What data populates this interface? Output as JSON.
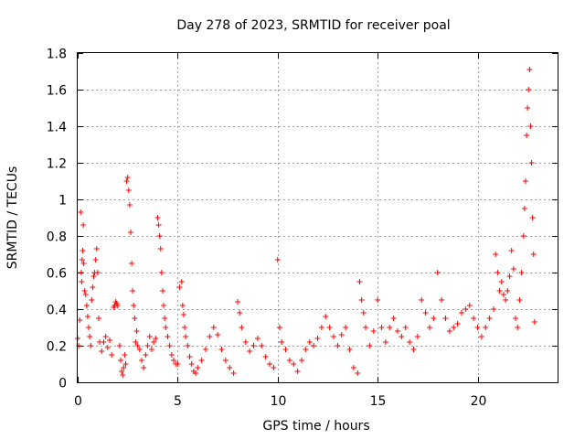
{
  "chart_data": {
    "type": "scatter",
    "title": "Day 278 of 2023, SRMTID for receiver poal",
    "xlabel": "GPS time / hours",
    "ylabel": "SRMTID / TECUs",
    "xlim": [
      0,
      24
    ],
    "ylim": [
      0,
      1.8
    ],
    "xticks": [
      0,
      5,
      10,
      15,
      20
    ],
    "yticks": [
      0,
      0.2,
      0.4,
      0.6,
      0.8,
      1,
      1.2,
      1.4,
      1.6,
      1.8
    ],
    "xtick_labels": [
      "0",
      "5",
      "10",
      "15",
      "20"
    ],
    "ytick_labels": [
      "0",
      "0.2",
      "0.4",
      "0.6",
      "0.8",
      "1",
      "1.2",
      "1.4",
      "1.6",
      "1.8"
    ],
    "grid": true,
    "marker": "+",
    "color": "#ff0000",
    "series": [
      {
        "name": "SRMTID",
        "points": [
          [
            0.0,
            0.24
          ],
          [
            0.05,
            0.2
          ],
          [
            0.1,
            0.34
          ],
          [
            0.15,
            0.93
          ],
          [
            0.18,
            0.6
          ],
          [
            0.2,
            0.55
          ],
          [
            0.22,
            0.67
          ],
          [
            0.25,
            0.72
          ],
          [
            0.28,
            0.86
          ],
          [
            0.3,
            0.65
          ],
          [
            0.35,
            0.5
          ],
          [
            0.4,
            0.48
          ],
          [
            0.45,
            0.42
          ],
          [
            0.5,
            0.36
          ],
          [
            0.55,
            0.3
          ],
          [
            0.6,
            0.25
          ],
          [
            0.65,
            0.2
          ],
          [
            0.7,
            0.45
          ],
          [
            0.75,
            0.52
          ],
          [
            0.8,
            0.58
          ],
          [
            0.85,
            0.6
          ],
          [
            0.9,
            0.67
          ],
          [
            0.95,
            0.73
          ],
          [
            1.0,
            0.6
          ],
          [
            1.05,
            0.35
          ],
          [
            1.1,
            0.22
          ],
          [
            1.2,
            0.17
          ],
          [
            1.3,
            0.22
          ],
          [
            1.4,
            0.25
          ],
          [
            1.5,
            0.19
          ],
          [
            1.6,
            0.23
          ],
          [
            1.7,
            0.15
          ],
          [
            1.8,
            0.41
          ],
          [
            1.85,
            0.42
          ],
          [
            1.9,
            0.44
          ],
          [
            1.95,
            0.43
          ],
          [
            2.0,
            0.42
          ],
          [
            2.1,
            0.2
          ],
          [
            2.15,
            0.12
          ],
          [
            2.2,
            0.06
          ],
          [
            2.25,
            0.04
          ],
          [
            2.3,
            0.08
          ],
          [
            2.35,
            0.15
          ],
          [
            2.4,
            0.1
          ],
          [
            2.45,
            1.1
          ],
          [
            2.5,
            1.12
          ],
          [
            2.55,
            1.05
          ],
          [
            2.6,
            0.97
          ],
          [
            2.65,
            0.82
          ],
          [
            2.7,
            0.65
          ],
          [
            2.75,
            0.5
          ],
          [
            2.8,
            0.42
          ],
          [
            2.85,
            0.35
          ],
          [
            2.9,
            0.22
          ],
          [
            2.95,
            0.28
          ],
          [
            3.0,
            0.2
          ],
          [
            3.1,
            0.18
          ],
          [
            3.2,
            0.12
          ],
          [
            3.3,
            0.08
          ],
          [
            3.4,
            0.15
          ],
          [
            3.5,
            0.2
          ],
          [
            3.6,
            0.25
          ],
          [
            3.7,
            0.18
          ],
          [
            3.8,
            0.22
          ],
          [
            3.9,
            0.24
          ],
          [
            4.0,
            0.9
          ],
          [
            4.05,
            0.86
          ],
          [
            4.1,
            0.8
          ],
          [
            4.15,
            0.73
          ],
          [
            4.2,
            0.6
          ],
          [
            4.25,
            0.5
          ],
          [
            4.3,
            0.42
          ],
          [
            4.35,
            0.35
          ],
          [
            4.4,
            0.3
          ],
          [
            4.5,
            0.25
          ],
          [
            4.6,
            0.2
          ],
          [
            4.7,
            0.15
          ],
          [
            4.8,
            0.12
          ],
          [
            4.9,
            0.1
          ],
          [
            5.0,
            0.1
          ],
          [
            5.1,
            0.52
          ],
          [
            5.2,
            0.55
          ],
          [
            5.25,
            0.42
          ],
          [
            5.3,
            0.37
          ],
          [
            5.35,
            0.3
          ],
          [
            5.4,
            0.25
          ],
          [
            5.5,
            0.2
          ],
          [
            5.6,
            0.14
          ],
          [
            5.7,
            0.1
          ],
          [
            5.8,
            0.06
          ],
          [
            5.9,
            0.05
          ],
          [
            6.0,
            0.08
          ],
          [
            6.2,
            0.12
          ],
          [
            6.4,
            0.18
          ],
          [
            6.6,
            0.25
          ],
          [
            6.8,
            0.3
          ],
          [
            7.0,
            0.26
          ],
          [
            7.2,
            0.18
          ],
          [
            7.4,
            0.12
          ],
          [
            7.6,
            0.08
          ],
          [
            7.8,
            0.05
          ],
          [
            8.0,
            0.44
          ],
          [
            8.1,
            0.38
          ],
          [
            8.2,
            0.3
          ],
          [
            8.4,
            0.22
          ],
          [
            8.6,
            0.17
          ],
          [
            8.8,
            0.2
          ],
          [
            9.0,
            0.24
          ],
          [
            9.2,
            0.2
          ],
          [
            9.4,
            0.14
          ],
          [
            9.6,
            0.1
          ],
          [
            9.8,
            0.08
          ],
          [
            10.0,
            0.67
          ],
          [
            10.1,
            0.3
          ],
          [
            10.2,
            0.22
          ],
          [
            10.4,
            0.18
          ],
          [
            10.6,
            0.12
          ],
          [
            10.8,
            0.1
          ],
          [
            11.0,
            0.06
          ],
          [
            11.2,
            0.12
          ],
          [
            11.4,
            0.18
          ],
          [
            11.6,
            0.22
          ],
          [
            11.8,
            0.2
          ],
          [
            12.0,
            0.24
          ],
          [
            12.2,
            0.3
          ],
          [
            12.4,
            0.36
          ],
          [
            12.6,
            0.3
          ],
          [
            12.8,
            0.25
          ],
          [
            13.0,
            0.2
          ],
          [
            13.2,
            0.26
          ],
          [
            13.4,
            0.3
          ],
          [
            13.6,
            0.18
          ],
          [
            13.8,
            0.08
          ],
          [
            14.0,
            0.05
          ],
          [
            14.1,
            0.55
          ],
          [
            14.2,
            0.45
          ],
          [
            14.3,
            0.38
          ],
          [
            14.4,
            0.3
          ],
          [
            14.6,
            0.2
          ],
          [
            14.8,
            0.28
          ],
          [
            15.0,
            0.45
          ],
          [
            15.2,
            0.3
          ],
          [
            15.4,
            0.22
          ],
          [
            15.6,
            0.3
          ],
          [
            15.8,
            0.35
          ],
          [
            16.0,
            0.28
          ],
          [
            16.2,
            0.25
          ],
          [
            16.4,
            0.3
          ],
          [
            16.6,
            0.22
          ],
          [
            16.8,
            0.18
          ],
          [
            17.0,
            0.25
          ],
          [
            17.2,
            0.45
          ],
          [
            17.4,
            0.38
          ],
          [
            17.6,
            0.3
          ],
          [
            17.8,
            0.35
          ],
          [
            18.0,
            0.6
          ],
          [
            18.2,
            0.45
          ],
          [
            18.4,
            0.35
          ],
          [
            18.6,
            0.28
          ],
          [
            18.8,
            0.3
          ],
          [
            19.0,
            0.32
          ],
          [
            19.2,
            0.38
          ],
          [
            19.4,
            0.4
          ],
          [
            19.6,
            0.42
          ],
          [
            19.8,
            0.35
          ],
          [
            20.0,
            0.3
          ],
          [
            20.2,
            0.25
          ],
          [
            20.4,
            0.3
          ],
          [
            20.6,
            0.35
          ],
          [
            20.8,
            0.4
          ],
          [
            20.9,
            0.7
          ],
          [
            21.0,
            0.6
          ],
          [
            21.1,
            0.5
          ],
          [
            21.2,
            0.55
          ],
          [
            21.3,
            0.48
          ],
          [
            21.4,
            0.45
          ],
          [
            21.5,
            0.5
          ],
          [
            21.6,
            0.58
          ],
          [
            21.7,
            0.72
          ],
          [
            21.8,
            0.62
          ],
          [
            21.9,
            0.35
          ],
          [
            22.0,
            0.3
          ],
          [
            22.1,
            0.45
          ],
          [
            22.2,
            0.6
          ],
          [
            22.3,
            0.8
          ],
          [
            22.35,
            0.95
          ],
          [
            22.4,
            1.1
          ],
          [
            22.45,
            1.35
          ],
          [
            22.5,
            1.5
          ],
          [
            22.55,
            1.6
          ],
          [
            22.6,
            1.71
          ],
          [
            22.65,
            1.4
          ],
          [
            22.7,
            1.2
          ],
          [
            22.75,
            0.9
          ],
          [
            22.8,
            0.7
          ],
          [
            22.85,
            0.33
          ]
        ]
      }
    ]
  }
}
